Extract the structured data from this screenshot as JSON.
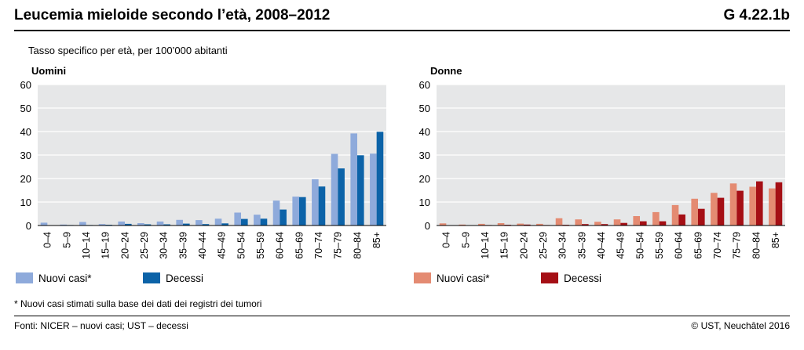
{
  "header": {
    "title": "Leucemia mieloide secondo l’età, 2008–2012",
    "code": "G 4.22.1b"
  },
  "subtitle": "Tasso specifico per età, per 100’000 abitanti",
  "footnote": "* Nuovi casi stimati sulla base dei dati dei registri dei tumori",
  "footer": {
    "sources": "Fonti: NICER – nuovi casi; UST – decessi",
    "copyright": "© UST, Neuchâtel 2016"
  },
  "colors": {
    "plot_bg": "#e6e7e8",
    "grid": "#ffffff",
    "men_new": "#8eaadb",
    "men_deaths": "#0c63a8",
    "women_new": "#e48b72",
    "women_deaths": "#a50f15"
  },
  "chart_data": [
    {
      "type": "bar",
      "title": "Uomini",
      "categories": [
        "0–4",
        "5–9",
        "10–14",
        "15–19",
        "20–24",
        "25–29",
        "30–34",
        "35–39",
        "40–44",
        "45–49",
        "50–54",
        "55–59",
        "60–64",
        "65–69",
        "70–74",
        "75–79",
        "80–84",
        "85+"
      ],
      "series": [
        {
          "name": "Nuovi casi*",
          "color": "#8eaadb",
          "values": [
            1.2,
            0.4,
            1.5,
            0.6,
            1.7,
            1.0,
            1.7,
            2.4,
            2.3,
            2.9,
            5.5,
            4.6,
            10.6,
            12.3,
            19.7,
            30.5,
            39.2,
            30.6
          ]
        },
        {
          "name": "Decessi",
          "color": "#0c63a8",
          "values": [
            0.1,
            0.2,
            0.2,
            0.3,
            0.7,
            0.5,
            0.5,
            0.8,
            0.6,
            0.9,
            2.8,
            2.9,
            6.8,
            12.1,
            16.6,
            24.3,
            29.9,
            39.9
          ]
        }
      ],
      "ylim": [
        0,
        60
      ],
      "yticks": [
        0,
        10,
        20,
        30,
        40,
        50,
        60
      ],
      "grid": true,
      "legend": "bottom-left"
    },
    {
      "type": "bar",
      "title": "Donne",
      "categories": [
        "0–4",
        "5–9",
        "10–14",
        "15–19",
        "20–24",
        "25–29",
        "30–34",
        "35–39",
        "40–44",
        "45–49",
        "50–54",
        "55–59",
        "60–64",
        "65–69",
        "70–74",
        "75–79",
        "80–84",
        "85+"
      ],
      "series": [
        {
          "name": "Nuovi casi*",
          "color": "#e48b72",
          "values": [
            0.9,
            0.4,
            0.7,
            1.0,
            0.8,
            0.7,
            3.1,
            2.6,
            1.6,
            2.6,
            4.0,
            5.7,
            8.7,
            11.4,
            13.9,
            17.9,
            16.5,
            15.8
          ]
        },
        {
          "name": "Decessi",
          "color": "#a50f15",
          "values": [
            0.1,
            0.1,
            0.2,
            0.3,
            0.4,
            0.2,
            0.3,
            0.6,
            0.6,
            1.1,
            1.8,
            1.8,
            4.7,
            7.1,
            11.8,
            14.8,
            18.8,
            18.4
          ]
        }
      ],
      "ylim": [
        0,
        60
      ],
      "yticks": [
        0,
        10,
        20,
        30,
        40,
        50,
        60
      ],
      "grid": true,
      "legend": "bottom-left"
    }
  ]
}
